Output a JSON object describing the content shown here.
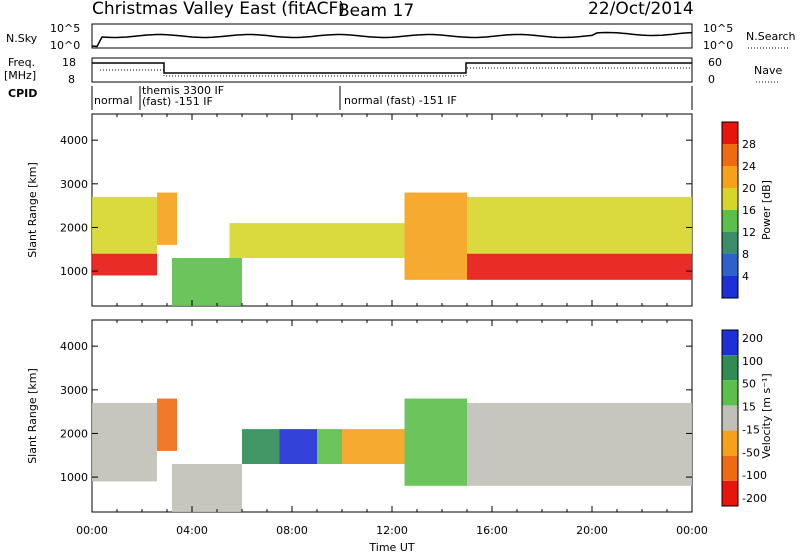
{
  "header": {
    "title": "Christmas Valley East (fitACF)",
    "beam": "Beam 17",
    "date": "22/Oct/2014"
  },
  "top_panels": {
    "nsky_label": "N.Sky",
    "nsky_ticks": [
      "10^5",
      "10^0"
    ],
    "nsearch_label": "N.Search",
    "nsearch_ticks": [
      "10^5",
      "10^0"
    ],
    "freq_label_1": "Freq.",
    "freq_label_2": "[MHz]",
    "freq_ticks": [
      "18",
      "8"
    ],
    "nave_label": "Nave",
    "nave_ticks": [
      "60",
      "0"
    ],
    "cpid_label": "CPID",
    "cpid_segments": [
      {
        "line1": "normal",
        "line2": ""
      },
      {
        "line1": "themis 3300 IF",
        "line2": "(fast) -151 IF"
      },
      {
        "line1": "normal (fast) -151 IF",
        "line2": ""
      }
    ]
  },
  "axes": {
    "ylabel": "Slant Range [km]",
    "xlabel": "Time UT",
    "y_ticks": [
      "1000",
      "2000",
      "3000",
      "4000"
    ],
    "x_ticks": [
      "00:00",
      "04:00",
      "08:00",
      "12:00",
      "16:00",
      "20:00",
      "00:00"
    ]
  },
  "colorbars": {
    "power_label": "Power [dB]",
    "power_ticks": [
      "4",
      "8",
      "12",
      "16",
      "20",
      "24",
      "28"
    ],
    "velocity_label": "Velocity [m s⁻¹]",
    "velocity_ticks": [
      "200",
      "100",
      "50",
      "15",
      "-15",
      "-50",
      "-100",
      "-200"
    ]
  },
  "chart_data": [
    {
      "type": "heatmap",
      "title": "Power",
      "x_units": "hours UT",
      "xlim": [
        0,
        24
      ],
      "ylim": [
        200,
        4600
      ],
      "colorbar_range": [
        0,
        32
      ],
      "regions": [
        {
          "t0": 0.0,
          "t1": 2.6,
          "r0": 900,
          "r1": 1400,
          "v": 30
        },
        {
          "t0": 0.0,
          "t1": 2.6,
          "r0": 1400,
          "r1": 2700,
          "v": 18
        },
        {
          "t0": 2.6,
          "t1": 3.4,
          "r0": 1600,
          "r1": 2800,
          "v": 20
        },
        {
          "t0": 3.2,
          "t1": 6.0,
          "r0": 200,
          "r1": 1300,
          "v": 14
        },
        {
          "t0": 5.5,
          "t1": 12.5,
          "r0": 1300,
          "r1": 2100,
          "v": 16
        },
        {
          "t0": 12.5,
          "t1": 15.0,
          "r0": 800,
          "r1": 2800,
          "v": 22
        },
        {
          "t0": 15.0,
          "t1": 24.0,
          "r0": 800,
          "r1": 1400,
          "v": 30
        },
        {
          "t0": 15.0,
          "t1": 24.0,
          "r0": 1400,
          "r1": 2700,
          "v": 18
        }
      ]
    },
    {
      "type": "heatmap",
      "title": "Velocity",
      "x_units": "hours UT",
      "xlim": [
        0,
        24
      ],
      "ylim": [
        200,
        4600
      ],
      "colorbar_range": [
        -200,
        200
      ],
      "regions": [
        {
          "t0": 0.0,
          "t1": 2.6,
          "r0": 900,
          "r1": 2700,
          "v": 0
        },
        {
          "t0": 2.6,
          "t1": 3.4,
          "r0": 1600,
          "r1": 2800,
          "v": -60
        },
        {
          "t0": 3.2,
          "t1": 6.0,
          "r0": 200,
          "r1": 1300,
          "v": 0
        },
        {
          "t0": 6.0,
          "t1": 7.5,
          "r0": 1300,
          "r1": 2100,
          "v": 80
        },
        {
          "t0": 7.5,
          "t1": 9.0,
          "r0": 1300,
          "r1": 2100,
          "v": 180
        },
        {
          "t0": 9.0,
          "t1": 10.0,
          "r0": 1300,
          "r1": 2100,
          "v": 40
        },
        {
          "t0": 10.0,
          "t1": 12.5,
          "r0": 1300,
          "r1": 2100,
          "v": -40
        },
        {
          "t0": 12.5,
          "t1": 15.0,
          "r0": 800,
          "r1": 2800,
          "v": 30
        },
        {
          "t0": 15.0,
          "t1": 24.0,
          "r0": 800,
          "r1": 2700,
          "v": 0
        }
      ]
    }
  ]
}
